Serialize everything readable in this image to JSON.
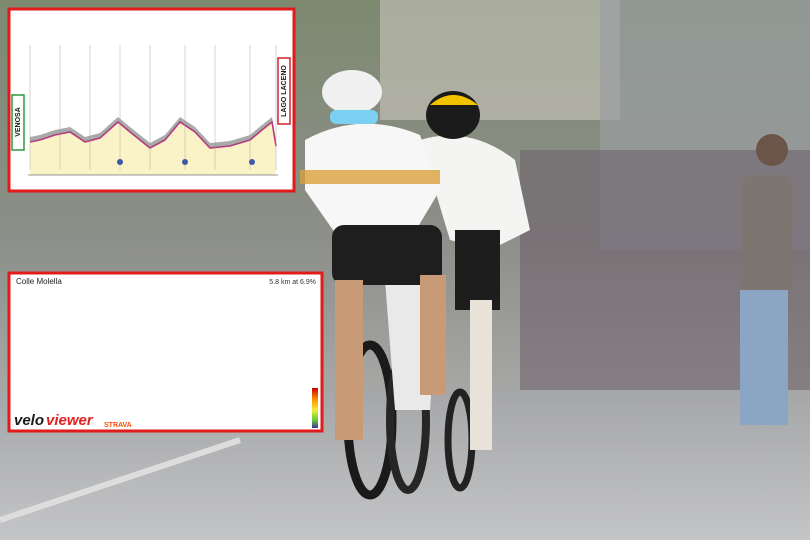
{
  "stage_profile": {
    "start": "VENOSA",
    "finish": "LAGO LACENO"
  },
  "climb_profile": {
    "title": "Colle Molella",
    "summary": "5.8 km at 6.9%",
    "brand_dark": "velo",
    "brand_red": "viewer",
    "powered_by": "STRAVA"
  }
}
